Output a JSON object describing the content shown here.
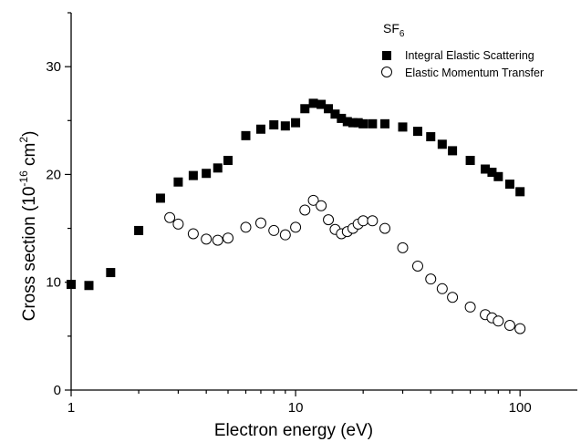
{
  "chart_data": {
    "type": "scatter",
    "x_scale": "log",
    "xlim": [
      1,
      180
    ],
    "ylim": [
      0,
      35
    ],
    "xlabel": "Electron energy (eV)",
    "ylabel": {
      "main": "Cross section (10",
      "exp1": "-16",
      "mid": " cm",
      "exp2": "2",
      "end": ")"
    },
    "x_ticks": [
      {
        "value": 1,
        "label": "1"
      },
      {
        "value": 10,
        "label": "10"
      },
      {
        "value": 100,
        "label": "100"
      }
    ],
    "y_ticks": [
      {
        "value": 0,
        "label": "0"
      },
      {
        "value": 10,
        "label": "10"
      },
      {
        "value": 20,
        "label": "20"
      },
      {
        "value": 30,
        "label": "30"
      }
    ],
    "legend": {
      "title_main": "SF",
      "title_sub": "6",
      "position": "top-right"
    },
    "series": [
      {
        "name": "Integral Elastic Scattering",
        "marker": "filled-square",
        "color": "#000000",
        "points": [
          [
            1,
            9.8
          ],
          [
            1.2,
            9.7
          ],
          [
            1.5,
            10.9
          ],
          [
            2,
            14.8
          ],
          [
            2.5,
            17.8
          ],
          [
            3,
            19.3
          ],
          [
            3.5,
            19.9
          ],
          [
            4,
            20.1
          ],
          [
            4.5,
            20.6
          ],
          [
            5,
            21.3
          ],
          [
            6,
            23.6
          ],
          [
            7,
            24.2
          ],
          [
            8,
            24.6
          ],
          [
            9,
            24.5
          ],
          [
            10,
            24.8
          ],
          [
            11,
            26.1
          ],
          [
            12,
            26.6
          ],
          [
            13,
            26.5
          ],
          [
            14,
            26.1
          ],
          [
            15,
            25.6
          ],
          [
            16,
            25.2
          ],
          [
            17,
            24.9
          ],
          [
            18,
            24.8
          ],
          [
            19,
            24.8
          ],
          [
            20,
            24.7
          ],
          [
            22,
            24.7
          ],
          [
            25,
            24.7
          ],
          [
            30,
            24.4
          ],
          [
            35,
            24.0
          ],
          [
            40,
            23.5
          ],
          [
            45,
            22.8
          ],
          [
            50,
            22.2
          ],
          [
            60,
            21.3
          ],
          [
            70,
            20.5
          ],
          [
            75,
            20.2
          ],
          [
            80,
            19.8
          ],
          [
            90,
            19.1
          ],
          [
            100,
            18.4
          ]
        ]
      },
      {
        "name": "Elastic Momentum Transfer",
        "marker": "open-circle",
        "color": "#000000",
        "points": [
          [
            2.75,
            16.0
          ],
          [
            3,
            15.4
          ],
          [
            3.5,
            14.5
          ],
          [
            4,
            14.0
          ],
          [
            4.5,
            13.9
          ],
          [
            5,
            14.1
          ],
          [
            6,
            15.1
          ],
          [
            7,
            15.5
          ],
          [
            8,
            14.8
          ],
          [
            9,
            14.4
          ],
          [
            10,
            15.1
          ],
          [
            11,
            16.7
          ],
          [
            12,
            17.6
          ],
          [
            13,
            17.1
          ],
          [
            14,
            15.8
          ],
          [
            15,
            14.9
          ],
          [
            16,
            14.5
          ],
          [
            17,
            14.7
          ],
          [
            18,
            15.0
          ],
          [
            19,
            15.4
          ],
          [
            20,
            15.7
          ],
          [
            22,
            15.7
          ],
          [
            25,
            15.0
          ],
          [
            30,
            13.2
          ],
          [
            35,
            11.5
          ],
          [
            40,
            10.3
          ],
          [
            45,
            9.4
          ],
          [
            50,
            8.6
          ],
          [
            60,
            7.7
          ],
          [
            70,
            7.0
          ],
          [
            75,
            6.7
          ],
          [
            80,
            6.4
          ],
          [
            90,
            6.0
          ],
          [
            100,
            5.7
          ]
        ]
      }
    ]
  }
}
